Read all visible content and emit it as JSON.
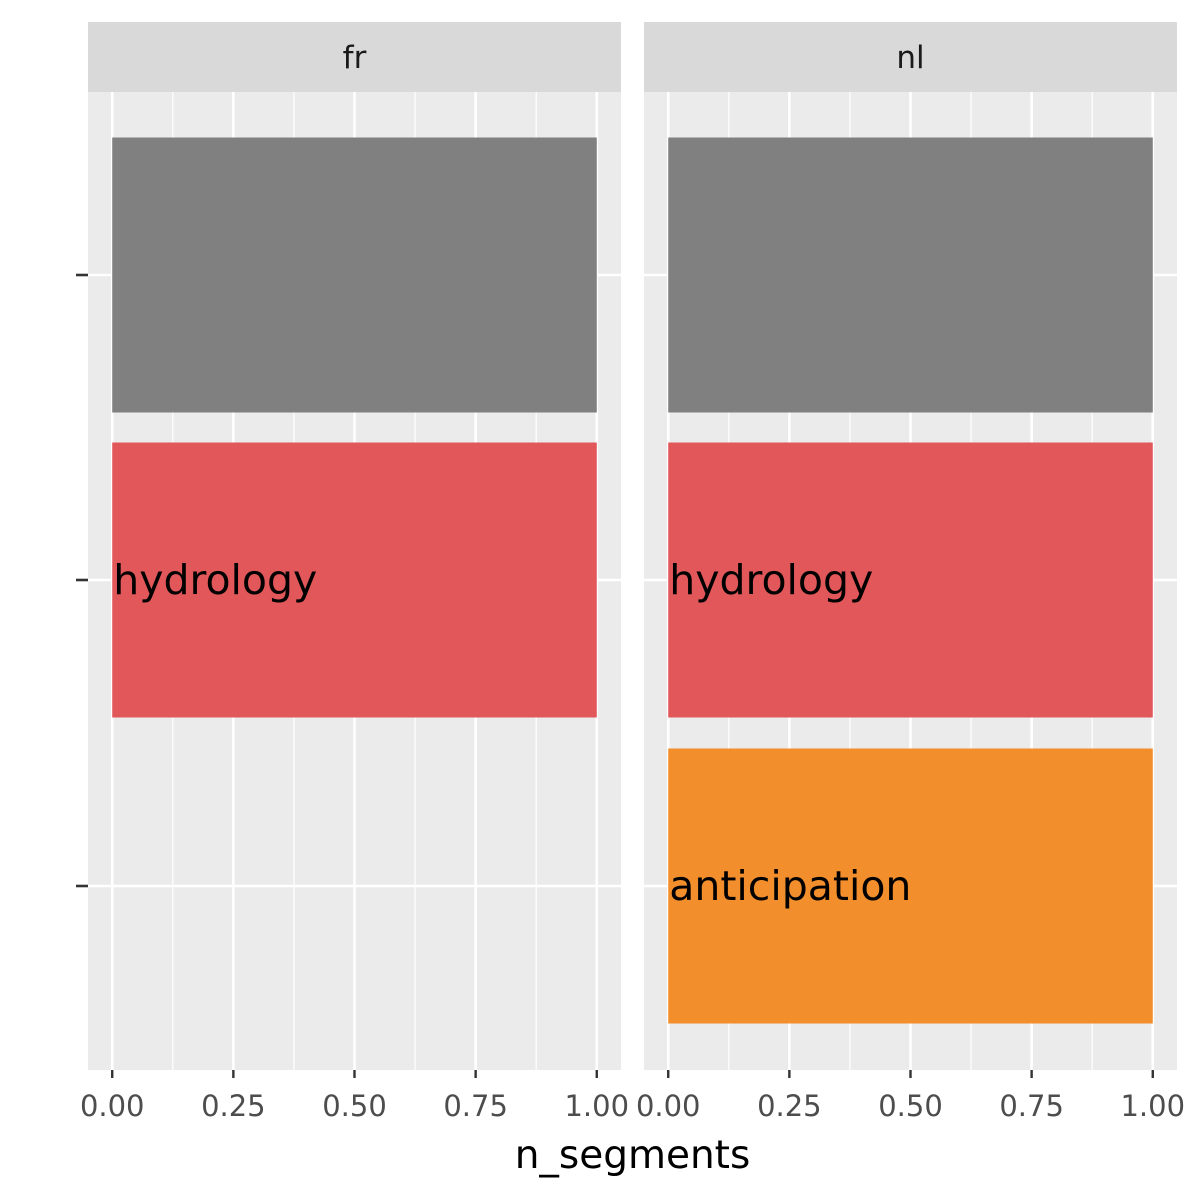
{
  "chart_data": {
    "type": "bar",
    "orientation": "horizontal",
    "xlabel": "n_segments",
    "ylabel": "",
    "xlim": [
      -0.05,
      1.05
    ],
    "x_ticks": [
      "0.00",
      "0.25",
      "0.50",
      "0.75",
      "1.00"
    ],
    "x_tick_values": [
      0,
      0.25,
      0.5,
      0.75,
      1.0
    ],
    "y_tick_count": 3,
    "grid": true,
    "legend": "none",
    "panels": [
      {
        "facet": "fr",
        "bars": [
          {
            "row": 0,
            "value": 1,
            "label": "",
            "color": "#808080"
          },
          {
            "row": 1,
            "value": 1,
            "label": "hydrology",
            "color": "#E1575A"
          }
        ]
      },
      {
        "facet": "nl",
        "bars": [
          {
            "row": 0,
            "value": 1,
            "label": "",
            "color": "#808080"
          },
          {
            "row": 1,
            "value": 1,
            "label": "hydrology",
            "color": "#E1575A"
          },
          {
            "row": 2,
            "value": 1,
            "label": "anticipation",
            "color": "#F28E2B"
          }
        ]
      }
    ],
    "colors": {
      "panel_bg": "#EBEBEB",
      "strip_bg": "#D9D9D9",
      "grid": "#FFFFFF",
      "tick": "#333333"
    }
  }
}
